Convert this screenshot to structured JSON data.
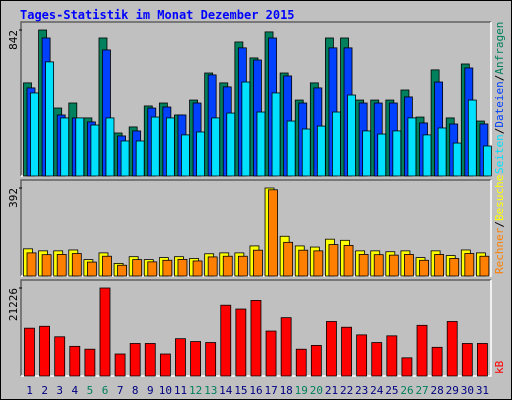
{
  "chart_data": [
    {
      "type": "bar",
      "title": "Tages-Statistik im Monat Dezember 2015",
      "ylim": [
        0,
        842
      ],
      "yticks": [
        842
      ],
      "legend_separator": "/",
      "series": [
        {
          "name": "Anfragen",
          "color": "#00805c",
          "values": [
            537,
            842,
            392,
            421,
            335,
            796,
            248,
            283,
            404,
            421,
            352,
            438,
            594,
            537,
            773,
            681,
            831,
            594,
            438,
            537,
            796,
            796,
            438,
            438,
            438,
            496,
            340,
            612,
            335,
            646,
            317
          ]
        },
        {
          "name": "Dateien",
          "color": "#0040ff",
          "values": [
            508,
            796,
            352,
            335,
            312,
            727,
            231,
            260,
            392,
            398,
            352,
            421,
            583,
            514,
            739,
            669,
            796,
            577,
            421,
            508,
            739,
            739,
            421,
            421,
            421,
            456,
            306,
            542,
            300,
            623,
            300
          ]
        },
        {
          "name": "Seiten",
          "color": "#00e0ff",
          "values": [
            479,
            658,
            335,
            335,
            294,
            335,
            202,
            202,
            340,
            335,
            237,
            254,
            335,
            363,
            542,
            369,
            479,
            317,
            271,
            288,
            369,
            467,
            260,
            242,
            260,
            335,
            237,
            277,
            190,
            438,
            173
          ]
        }
      ]
    },
    {
      "type": "bar",
      "ylim": [
        0,
        392
      ],
      "yticks": [
        392
      ],
      "legend_separator": "/",
      "series": [
        {
          "name": "Besuche",
          "color": "#ffff00",
          "values": [
            121,
            112,
            112,
            116,
            73,
            103,
            56,
            86,
            73,
            82,
            86,
            78,
            99,
            103,
            103,
            134,
            392,
            177,
            134,
            129,
            164,
            159,
            112,
            112,
            108,
            112,
            82,
            112,
            91,
            116,
            103
          ]
        },
        {
          "name": "Rechner",
          "color": "#ff8000",
          "values": [
            103,
            95,
            96,
            100,
            62,
            88,
            48,
            73,
            63,
            70,
            74,
            67,
            85,
            88,
            88,
            115,
            384,
            150,
            115,
            112,
            140,
            136,
            96,
            95,
            93,
            96,
            70,
            96,
            78,
            100,
            88
          ]
        }
      ]
    },
    {
      "type": "bar",
      "ylim": [
        0,
        21226
      ],
      "yticks": [
        21226
      ],
      "categories": [
        "1",
        "2",
        "3",
        "4",
        "5",
        "6",
        "7",
        "8",
        "9",
        "10",
        "11",
        "12",
        "13",
        "14",
        "15",
        "16",
        "17",
        "18",
        "19",
        "20",
        "21",
        "22",
        "23",
        "24",
        "25",
        "26",
        "27",
        "28",
        "29",
        "30",
        "31"
      ],
      "category_colors": [
        "#000080",
        "#000080",
        "#000080",
        "#000080",
        "#00805c",
        "#00805c",
        "#000080",
        "#000080",
        "#000080",
        "#000080",
        "#000080",
        "#00805c",
        "#00805c",
        "#000080",
        "#000080",
        "#000080",
        "#000080",
        "#000080",
        "#00805c",
        "#00805c",
        "#000080",
        "#000080",
        "#000080",
        "#000080",
        "#000080",
        "#00805c",
        "#00805c",
        "#000080",
        "#000080",
        "#000080",
        "#000080"
      ],
      "series": [
        {
          "name": "kB",
          "color": "#ff0000",
          "values": [
            11535,
            11996,
            9459,
            7152,
            6460,
            21226,
            5306,
            7844,
            7844,
            5306,
            8998,
            8305,
            8075,
            17073,
            16150,
            18226,
            10843,
            14073,
            6460,
            7383,
            13150,
            11766,
            9920,
            8075,
            9690,
            4383,
            12227,
            6921,
            13150,
            7844,
            7844
          ]
        }
      ]
    }
  ]
}
